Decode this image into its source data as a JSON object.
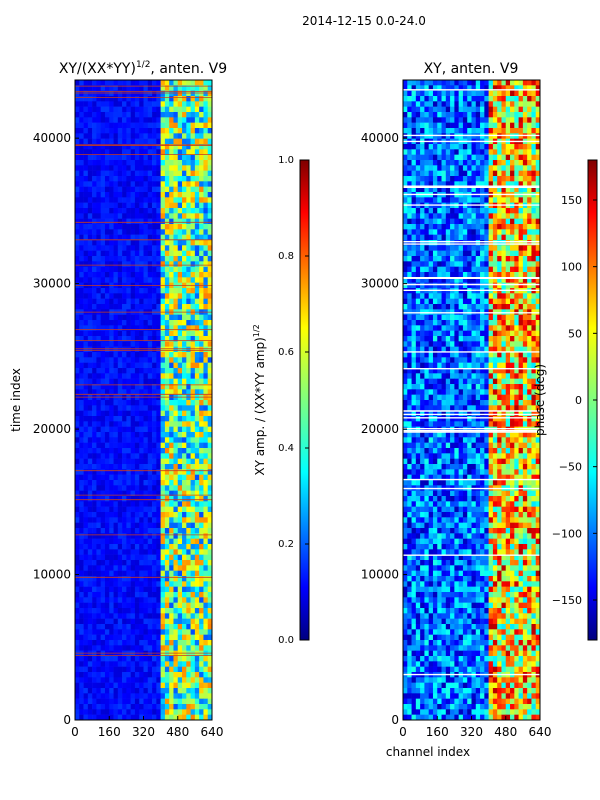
{
  "figure": {
    "suptitle": "2014-12-15 0.0-24.0"
  },
  "chart_data": [
    {
      "type": "heatmap",
      "title_main": "XY/(XX*YY)",
      "title_sup": "1/2",
      "title_tail": ", anten. V9",
      "xlabel": "",
      "ylabel": "time index",
      "xlim": [
        0,
        640
      ],
      "ylim": [
        0,
        44000
      ],
      "xticks": [
        0,
        160,
        320,
        480,
        640
      ],
      "yticks": [
        0,
        10000,
        20000,
        30000,
        40000
      ],
      "colorbar": {
        "label_main": "XY amp. / (XX*YY amp)",
        "label_sup": "1/2",
        "range": [
          0.0,
          1.0
        ],
        "ticks": [
          "0.0",
          "0.2",
          "0.4",
          "0.6",
          "0.8",
          "1.0"
        ],
        "colormap": "jet"
      },
      "description_values": {
        "low_channel_band_level": 0.1,
        "high_channel_band_level": 0.55,
        "high_band_start_channel": 400
      }
    },
    {
      "type": "heatmap",
      "title": "XY, anten. V9",
      "xlabel": "channel index",
      "ylabel": "",
      "xlim": [
        0,
        640
      ],
      "ylim": [
        0,
        44000
      ],
      "xticks": [
        0,
        160,
        320,
        480,
        640
      ],
      "yticks": [
        0,
        10000,
        20000,
        30000,
        40000
      ],
      "colorbar": {
        "label": "phase (deg)",
        "range": [
          -180,
          180
        ],
        "ticks": [
          "150",
          "100",
          "50",
          "0",
          "−50",
          "−100",
          "−150"
        ],
        "colormap": "jet"
      }
    }
  ]
}
